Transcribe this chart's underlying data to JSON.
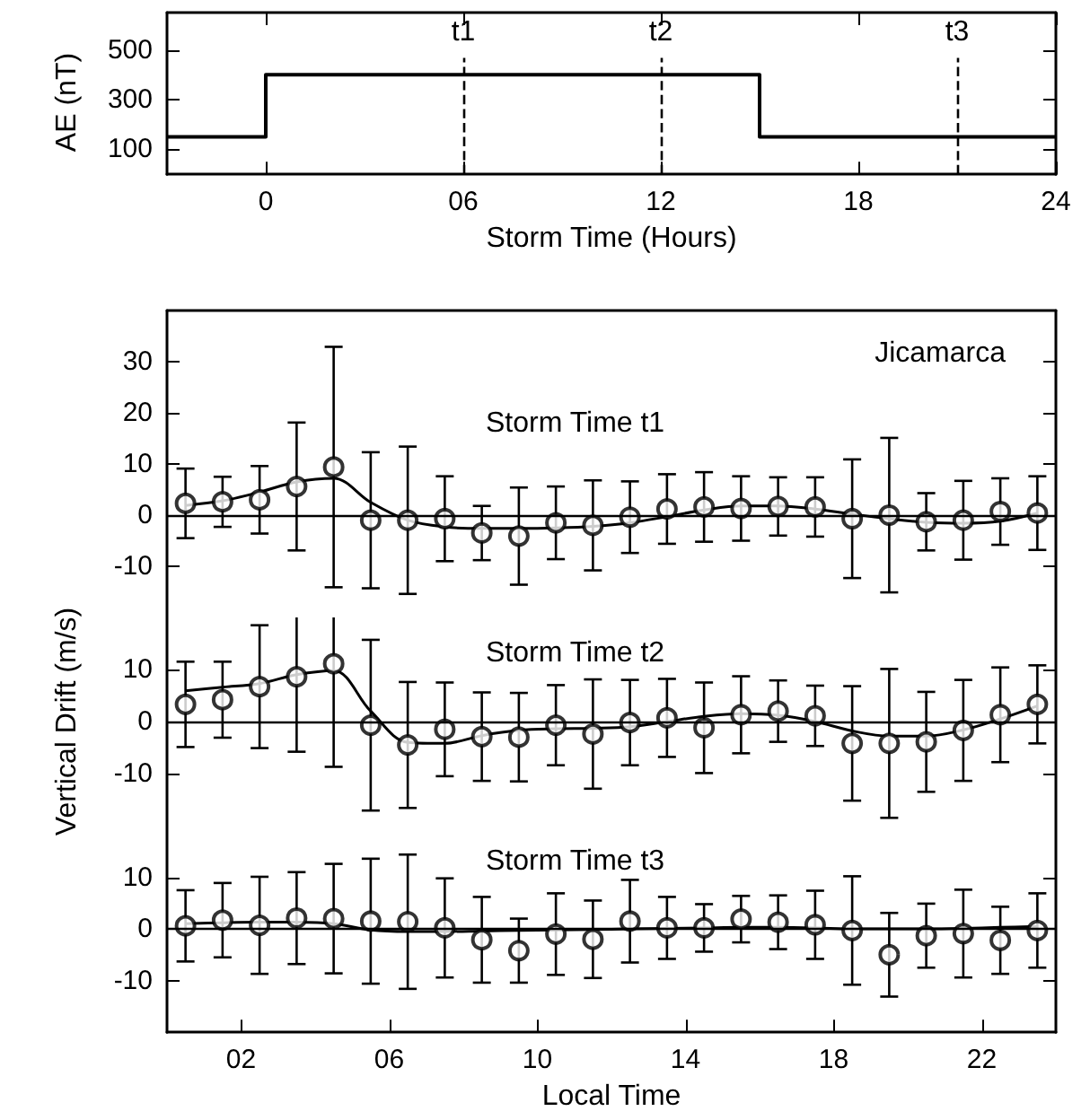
{
  "chart_data": [
    {
      "type": "step",
      "x": [
        -3,
        0,
        15,
        24
      ],
      "values": [
        150,
        400,
        150,
        150
      ],
      "color": "#000000",
      "xlim": [
        -3,
        24
      ],
      "xticks": [
        {
          "value": 0,
          "label": "0"
        },
        {
          "value": 6,
          "label": "06"
        },
        12,
        18,
        24
      ],
      "ylim": [
        0,
        650
      ],
      "yticks": [
        100,
        300,
        500
      ],
      "xlabel": "Storm Time (Hours)",
      "ylabel": "AE (nT)",
      "marker": "none",
      "ref_lines": [
        {
          "axis": "x",
          "value": 6,
          "label": "t1",
          "line_style": "dashed"
        },
        {
          "axis": "x",
          "value": 12,
          "label": "t2",
          "line_style": "dashed"
        },
        {
          "axis": "x",
          "value": 21,
          "label": "t3",
          "line_style": "dashed"
        }
      ]
    },
    {
      "type": "scatter",
      "title": "Storm Time t1",
      "annotations": [
        "Jicamarca"
      ],
      "x": [
        0.5,
        1.5,
        2.5,
        3.5,
        4.5,
        5.5,
        6.5,
        7.5,
        8.5,
        9.5,
        10.5,
        11.5,
        12.5,
        13.5,
        14.5,
        15.5,
        16.5,
        17.5,
        18.5,
        19.5,
        20.5,
        21.5,
        22.5,
        23.5
      ],
      "xlim": [
        0,
        24
      ],
      "ylim": [
        -20,
        40
      ],
      "yticks": [
        -10,
        0,
        10,
        20,
        30
      ],
      "tick_labels": "y",
      "marker": "circle",
      "series": [
        {
          "color": "#000000",
          "values": [
            2.3,
            2.6,
            3,
            5.6,
            9.4,
            -1,
            -1,
            -0.7,
            -3.5,
            -4.1,
            -1.5,
            -2,
            -0.4,
            1.2,
            1.6,
            1.3,
            1.7,
            1.6,
            -0.7,
            0,
            -1.3,
            -1,
            0.7,
            0.4
          ],
          "errors": [
            6.8,
            4.9,
            6.6,
            12.5,
            23.5,
            13.3,
            14.4,
            8.3,
            5.3,
            9.5,
            7.1,
            8.8,
            7,
            6.8,
            6.8,
            6.3,
            5.7,
            5.8,
            11.6,
            15.1,
            5.6,
            7.7,
            6.5,
            7.2
          ]
        },
        {
          "type": "line",
          "color": "#000000",
          "marker": "none",
          "values": [
            1.9,
            2.8,
            4.5,
            6.5,
            7.2,
            2.5,
            -1,
            -2.3,
            -2.6,
            -2.6,
            -2.5,
            -2.2,
            -1.5,
            -0.3,
            1,
            1.8,
            1.8,
            1.2,
            0.2,
            -0.7,
            -1.4,
            -1.6,
            -1.2,
            0.4
          ]
        }
      ],
      "ref_lines": [
        {
          "axis": "y",
          "value": 0,
          "color": "#000000"
        }
      ]
    },
    {
      "type": "scatter",
      "title": "Storm Time t2",
      "ylabel": "Vertical Drift (m/s)",
      "x": [
        0.5,
        1.5,
        2.5,
        3.5,
        4.5,
        5.5,
        6.5,
        7.5,
        8.5,
        9.5,
        10.5,
        11.5,
        12.5,
        13.5,
        14.5,
        15.5,
        16.5,
        17.5,
        18.5,
        19.5,
        20.5,
        21.5,
        22.5,
        23.5
      ],
      "xlim": [
        0,
        24
      ],
      "ylim": [
        -20,
        20
      ],
      "yticks": [
        -10,
        0,
        10
      ],
      "tick_labels": "y",
      "marker": "circle",
      "series": [
        {
          "color": "#000000",
          "values": [
            3.3,
            4.2,
            6.7,
            8.6,
            11.1,
            -0.7,
            -4.5,
            -1.5,
            -2.9,
            -3,
            -0.7,
            -2.4,
            -0.2,
            0.7,
            -1.2,
            1.3,
            2,
            1.1,
            -4.2,
            -4.2,
            -3.9,
            -1.7,
            1.3,
            3.3
          ],
          "errors": [
            8.2,
            7.3,
            11.8,
            14.4,
            19.8,
            16.4,
            12.1,
            9,
            8.5,
            8.5,
            7.7,
            10.5,
            8.2,
            7.5,
            8.7,
            7.4,
            5.9,
            5.8,
            11,
            14.3,
            9.6,
            9.7,
            9.1,
            7.5
          ]
        },
        {
          "type": "line",
          "color": "#000000",
          "marker": "none",
          "values": [
            5.9,
            6.6,
            7.3,
            9,
            9.8,
            2,
            -4,
            -4.2,
            -2.7,
            -1.7,
            -1.4,
            -1.3,
            -1,
            0,
            1,
            1.5,
            1.2,
            0,
            -1.8,
            -2.8,
            -2.8,
            -1.6,
            0.5,
            3
          ]
        }
      ],
      "ref_lines": [
        {
          "axis": "y",
          "value": 0,
          "color": "#000000"
        }
      ]
    },
    {
      "type": "scatter",
      "title": "Storm Time t3",
      "xlabel": "Local Time",
      "x": [
        0.5,
        1.5,
        2.5,
        3.5,
        4.5,
        5.5,
        6.5,
        7.5,
        8.5,
        9.5,
        10.5,
        11.5,
        12.5,
        13.5,
        14.5,
        15.5,
        16.5,
        17.5,
        18.5,
        19.5,
        20.5,
        21.5,
        22.5,
        23.5
      ],
      "xlim": [
        0,
        24
      ],
      "xticks": [
        {
          "value": 2,
          "label": "02"
        },
        {
          "value": 6,
          "label": "06"
        },
        10,
        14,
        18,
        22
      ],
      "ylim": [
        -20,
        20
      ],
      "yticks": [
        -10,
        0,
        10
      ],
      "marker": "circle",
      "series": [
        {
          "color": "#000000",
          "values": [
            0.6,
            1.7,
            0.7,
            2.1,
            2,
            1.5,
            1.4,
            0.2,
            -2.1,
            -4.2,
            -1,
            -2,
            1.5,
            0.2,
            0.2,
            1.9,
            1.3,
            0.8,
            -0.3,
            -5,
            -1.3,
            -0.9,
            -2.2,
            -0.3
          ],
          "errors": [
            6.9,
            7.2,
            9.4,
            8.9,
            10.6,
            12.1,
            13,
            9.6,
            8.3,
            6.2,
            7.9,
            7.5,
            8,
            6,
            4.6,
            4.5,
            5.2,
            6.6,
            10.5,
            8.1,
            6.2,
            8.5,
            6.5,
            7.2
          ]
        },
        {
          "type": "line",
          "color": "#000000",
          "marker": "none",
          "values": [
            1,
            1.2,
            1.3,
            1.3,
            1,
            -0.2,
            -0.5,
            -0.5,
            -0.4,
            -0.3,
            -0.2,
            -0.1,
            0,
            0.1,
            0.2,
            0.3,
            0.3,
            0.2,
            0,
            0,
            0,
            0.1,
            0.3,
            0.5
          ]
        }
      ],
      "ref_lines": [
        {
          "axis": "y",
          "value": 0,
          "color": "#000000"
        }
      ]
    }
  ]
}
